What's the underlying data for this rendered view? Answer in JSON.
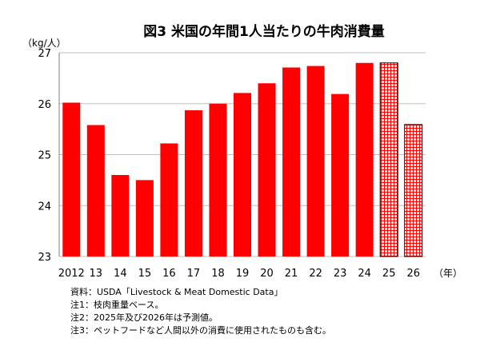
{
  "chart_data": {
    "type": "bar",
    "title": "図3 米国の年間1人当たりの牛肉消費量",
    "ylabel": "（kg/人）",
    "xlabel": "（年）",
    "ylim": [
      23,
      27
    ],
    "yticks": [
      23,
      24,
      25,
      26,
      27
    ],
    "grid": true,
    "categories": [
      "2012",
      "13",
      "14",
      "15",
      "16",
      "17",
      "18",
      "19",
      "20",
      "21",
      "22",
      "23",
      "24",
      "25",
      "26"
    ],
    "values": [
      26.02,
      25.58,
      24.6,
      24.5,
      25.22,
      25.87,
      26.0,
      26.21,
      26.4,
      26.71,
      26.74,
      26.19,
      26.8,
      26.8,
      25.59
    ],
    "forecast": [
      false,
      false,
      false,
      false,
      false,
      false,
      false,
      false,
      false,
      false,
      false,
      false,
      false,
      true,
      true
    ],
    "colors": {
      "bar": "#ff0000",
      "forecast_fill": "#ff0000",
      "grid": "#bfbfbf",
      "axis": "#808080"
    }
  },
  "notes": [
    "資料：USDA「Livestock & Meat Domestic Data」",
    "注1：枝肉重量ベース。",
    "注2：2025年及び2026年は予測値。",
    "注3：ペットフードなど人間以外の消費に使用されたものも含む。"
  ]
}
